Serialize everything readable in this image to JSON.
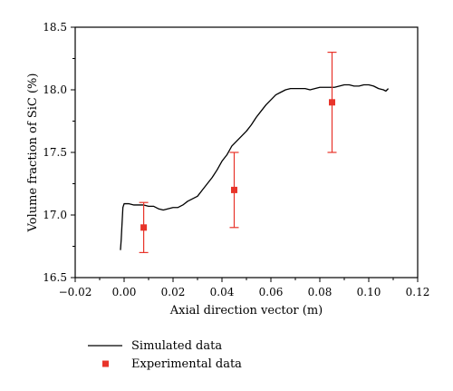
{
  "chart_data": {
    "type": "line",
    "title": "",
    "xlabel": "Axial direction vector (m)",
    "ylabel": "Volume fraction of SiC (%)",
    "xlim": [
      -0.02,
      0.12
    ],
    "ylim": [
      16.5,
      18.5
    ],
    "xticks": [
      -0.02,
      0.0,
      0.02,
      0.04,
      0.06,
      0.08,
      0.1,
      0.12
    ],
    "xtick_labels": [
      "−0.02",
      "0.00",
      "0.02",
      "0.04",
      "0.06",
      "0.08",
      "0.10",
      "0.12"
    ],
    "yticks": [
      16.5,
      17.0,
      17.5,
      18.0,
      18.5
    ],
    "ytick_labels": [
      "16.5",
      "17.0",
      "17.5",
      "18.0",
      "18.5"
    ],
    "grid": false,
    "legend_position": "below",
    "series": [
      {
        "name": "Simulated data",
        "kind": "line",
        "color": "#000000",
        "x": [
          -0.0015,
          -0.0012,
          -0.0008,
          -0.0005,
          0.0,
          0.002,
          0.004,
          0.006,
          0.008,
          0.01,
          0.012,
          0.014,
          0.016,
          0.018,
          0.02,
          0.022,
          0.024,
          0.026,
          0.028,
          0.03,
          0.032,
          0.034,
          0.036,
          0.038,
          0.04,
          0.042,
          0.044,
          0.046,
          0.048,
          0.05,
          0.052,
          0.054,
          0.056,
          0.058,
          0.06,
          0.062,
          0.064,
          0.066,
          0.068,
          0.07,
          0.072,
          0.074,
          0.076,
          0.078,
          0.08,
          0.082,
          0.084,
          0.086,
          0.088,
          0.09,
          0.092,
          0.094,
          0.096,
          0.098,
          0.1,
          0.102,
          0.104,
          0.106,
          0.107,
          0.108
        ],
        "y": [
          16.72,
          16.8,
          16.95,
          17.06,
          17.09,
          17.09,
          17.08,
          17.08,
          17.08,
          17.07,
          17.07,
          17.05,
          17.04,
          17.05,
          17.06,
          17.06,
          17.08,
          17.11,
          17.13,
          17.15,
          17.2,
          17.25,
          17.3,
          17.36,
          17.43,
          17.48,
          17.55,
          17.59,
          17.63,
          17.67,
          17.72,
          17.78,
          17.83,
          17.88,
          17.92,
          17.96,
          17.98,
          18.0,
          18.01,
          18.01,
          18.01,
          18.01,
          18.0,
          18.01,
          18.02,
          18.02,
          18.02,
          18.02,
          18.03,
          18.04,
          18.04,
          18.03,
          18.03,
          18.04,
          18.04,
          18.03,
          18.01,
          18.0,
          17.99,
          18.01
        ]
      },
      {
        "name": "Experimental data",
        "kind": "scatter-errorbar",
        "color": "#e8342a",
        "x": [
          0.008,
          0.045,
          0.085
        ],
        "y": [
          16.9,
          17.2,
          17.9
        ],
        "err_low": [
          16.7,
          16.9,
          17.5
        ],
        "err_high": [
          17.1,
          17.5,
          18.3
        ]
      }
    ]
  }
}
